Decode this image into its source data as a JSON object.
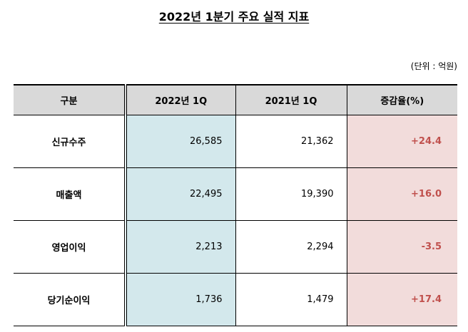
{
  "title": "2022년 1분기 주요 실적 지표",
  "unit": "(단위 : 억원)",
  "table": {
    "header": [
      "구분",
      "2022년 1Q",
      "2021년 1Q",
      "증감율(%)"
    ],
    "rows": [
      [
        "신규수주",
        "26,585",
        "21,362",
        "+24.4"
      ],
      [
        "매출액",
        "22,495",
        "19,390",
        "+16.0"
      ],
      [
        "영업이익",
        "2,213",
        "2,294",
        "-3.5"
      ],
      [
        "당기순이익",
        "1,736",
        "1,479",
        "+17.4"
      ]
    ]
  }
}
